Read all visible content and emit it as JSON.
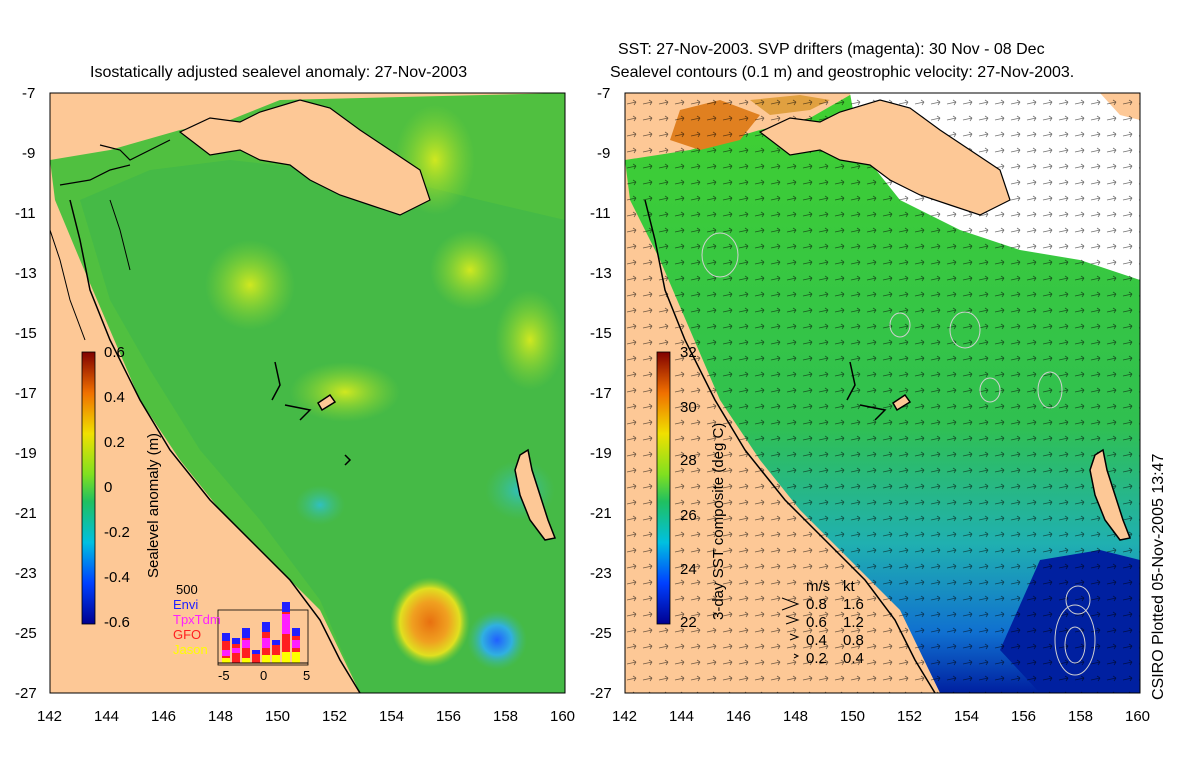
{
  "left": {
    "title": "Isostatically adjusted sealevel anomaly: 27-Nov-2003",
    "colorbar": {
      "label": "Sealevel anomaly (m)",
      "ticks": [
        "0.6",
        "0.4",
        "0.2",
        "0",
        "-0.2",
        "-0.4",
        "-0.6"
      ]
    },
    "histogram": {
      "top_label": "500",
      "legend": [
        {
          "name": "Envi",
          "color": "#2020ff"
        },
        {
          "name": "TpxTdm",
          "color": "#ff20ff"
        },
        {
          "name": "GFO",
          "color": "#ff2020"
        },
        {
          "name": "Jason",
          "color": "#ffff00"
        }
      ],
      "xticks": [
        "-5",
        "0",
        "5"
      ]
    }
  },
  "right": {
    "title_line1": "SST: 27-Nov-2003. SVP drifters (magenta): 30 Nov - 08 Dec",
    "title_line2": "Sealevel contours (0.1 m) and geostrophic velocity: 27-Nov-2003.",
    "colorbar": {
      "label": "3-day SST composite (deg C)",
      "ticks": [
        "32",
        "30",
        "28",
        "26",
        "24",
        "22"
      ]
    },
    "speed_legend": {
      "header_ms": "m/s",
      "header_kt": "kt",
      "rows": [
        [
          "0.8",
          "1.6"
        ],
        [
          "0.6",
          "1.2"
        ],
        [
          "0.4",
          "0.8"
        ],
        [
          "0.2",
          "0.4"
        ]
      ]
    }
  },
  "axes": {
    "lat_labels": [
      "-7",
      "-9",
      "-11",
      "-13",
      "-15",
      "-17",
      "-19",
      "-21",
      "-23",
      "-25",
      "-27"
    ],
    "lon_labels": [
      "142",
      "144",
      "146",
      "148",
      "150",
      "152",
      "154",
      "156",
      "158",
      "160"
    ]
  },
  "credit": "CSIRO Plotted 05-Nov-2005 13:47",
  "colors": {
    "land": "#fdc896",
    "sea_green": "#40c040",
    "sst_blue": "#1060d0",
    "cloud": "#ffffff"
  }
}
